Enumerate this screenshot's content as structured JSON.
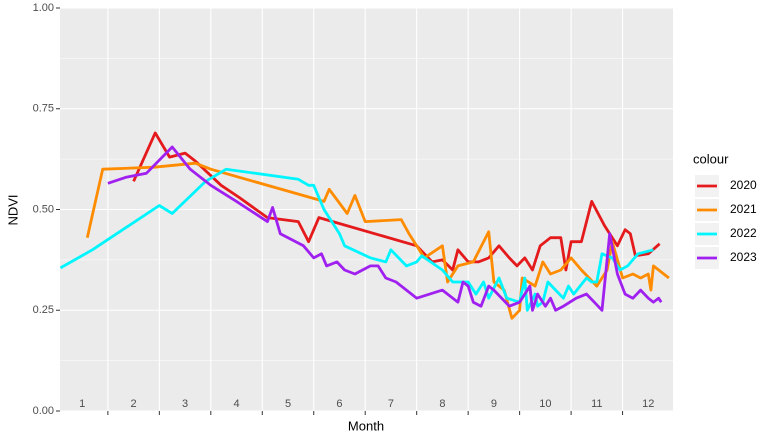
{
  "chart_data": {
    "type": "line",
    "xlabel": "Month",
    "ylabel": "NDVI",
    "legend_title": "colour",
    "legend": "right",
    "xlim": [
      0.57,
      12.48
    ],
    "xticks": [
      1,
      2,
      3,
      4,
      5,
      6,
      7,
      8,
      9,
      10,
      11,
      12
    ],
    "x_minor_ticks": [
      1.5,
      2.5,
      3.5,
      4.5,
      5.5,
      6.5,
      7.5,
      8.5,
      9.5,
      10.5,
      11.5
    ],
    "ylim": [
      0,
      1
    ],
    "yticks": [
      {
        "value": 0,
        "label": "0.00"
      },
      {
        "value": 0.25,
        "label": "0.25"
      },
      {
        "value": 0.5,
        "label": "0.50"
      },
      {
        "value": 0.75,
        "label": "0.75"
      },
      {
        "value": 1,
        "label": "1.00"
      }
    ],
    "grid": true,
    "series": [
      {
        "name": "2020",
        "color": "#e41a1c",
        "x": [
          2.0,
          2.42,
          2.7,
          3.0,
          3.2,
          3.7,
          4.05,
          4.6,
          5.2,
          5.4,
          5.6,
          7.5,
          7.8,
          8.0,
          8.2,
          8.3,
          8.5,
          8.7,
          8.9,
          9.1,
          9.3,
          9.45,
          9.6,
          9.75,
          9.9,
          10.1,
          10.3,
          10.4,
          10.5,
          10.7,
          10.9,
          11.15,
          11.4,
          11.55,
          11.65,
          11.75,
          12.0,
          12.22
        ],
        "values": [
          0.57,
          0.69,
          0.63,
          0.64,
          0.62,
          0.56,
          0.53,
          0.48,
          0.47,
          0.42,
          0.48,
          0.41,
          0.37,
          0.375,
          0.35,
          0.4,
          0.37,
          0.37,
          0.38,
          0.41,
          0.38,
          0.36,
          0.38,
          0.35,
          0.41,
          0.43,
          0.43,
          0.35,
          0.42,
          0.42,
          0.52,
          0.46,
          0.41,
          0.45,
          0.44,
          0.385,
          0.39,
          0.415
        ]
      },
      {
        "name": "2021",
        "color": "#ff8c00",
        "x": [
          1.1,
          1.4,
          2.4,
          3.2,
          3.5,
          5.7,
          5.8,
          6.15,
          6.3,
          6.5,
          7.2,
          7.35,
          7.65,
          8.0,
          8.1,
          8.3,
          8.6,
          8.9,
          9.0,
          9.2,
          9.35,
          9.5,
          9.55,
          9.8,
          9.95,
          10.1,
          10.3,
          10.5,
          10.7,
          10.85,
          11.0,
          11.2,
          11.3,
          11.5,
          11.7,
          11.85,
          12.0,
          12.05,
          12.1,
          12.4
        ],
        "values": [
          0.43,
          0.6,
          0.605,
          0.615,
          0.6,
          0.52,
          0.55,
          0.49,
          0.535,
          0.47,
          0.475,
          0.44,
          0.38,
          0.41,
          0.32,
          0.36,
          0.37,
          0.445,
          0.32,
          0.3,
          0.23,
          0.25,
          0.33,
          0.31,
          0.37,
          0.34,
          0.35,
          0.38,
          0.35,
          0.33,
          0.31,
          0.35,
          0.42,
          0.33,
          0.34,
          0.33,
          0.34,
          0.3,
          0.36,
          0.33
        ]
      },
      {
        "name": "2022",
        "color": "#00f5ff",
        "x": [
          0.58,
          1.2,
          2.5,
          2.75,
          3.4,
          3.8,
          5.2,
          5.4,
          5.5,
          5.7,
          6.0,
          6.1,
          6.6,
          6.9,
          7.0,
          7.3,
          7.5,
          7.6,
          8.0,
          8.2,
          8.5,
          8.65,
          8.8,
          8.9,
          9.1,
          9.25,
          9.5,
          9.6,
          9.65,
          9.8,
          9.85,
          9.95,
          10.05,
          10.2,
          10.35,
          10.45,
          10.55,
          10.8,
          10.9,
          11.0,
          11.1,
          11.3,
          11.45,
          11.6,
          11.8,
          12.1
        ],
        "values": [
          0.355,
          0.4,
          0.51,
          0.49,
          0.57,
          0.6,
          0.575,
          0.56,
          0.56,
          0.5,
          0.44,
          0.41,
          0.38,
          0.37,
          0.4,
          0.36,
          0.37,
          0.385,
          0.35,
          0.32,
          0.32,
          0.29,
          0.32,
          0.28,
          0.33,
          0.28,
          0.27,
          0.33,
          0.25,
          0.29,
          0.26,
          0.27,
          0.32,
          0.3,
          0.28,
          0.31,
          0.29,
          0.33,
          0.32,
          0.32,
          0.39,
          0.38,
          0.35,
          0.36,
          0.39,
          0.4
        ]
      },
      {
        "name": "2023",
        "color": "#a020f0",
        "x": [
          1.5,
          1.85,
          2.25,
          2.75,
          3.1,
          3.5,
          4.0,
          4.6,
          4.7,
          4.85,
          5.3,
          5.5,
          5.65,
          5.75,
          5.95,
          6.1,
          6.3,
          6.6,
          6.75,
          6.9,
          7.1,
          7.5,
          8.0,
          8.3,
          8.4,
          8.5,
          8.6,
          8.75,
          8.9,
          9.0,
          9.3,
          9.5,
          9.7,
          9.75,
          9.85,
          10.0,
          10.1,
          10.2,
          10.35,
          10.6,
          10.8,
          10.95,
          11.1,
          11.25,
          11.4,
          11.55,
          11.7,
          11.85,
          12.0,
          12.1,
          12.2,
          12.25
        ],
        "values": [
          0.565,
          0.58,
          0.59,
          0.655,
          0.6,
          0.56,
          0.52,
          0.47,
          0.505,
          0.44,
          0.41,
          0.38,
          0.39,
          0.36,
          0.37,
          0.35,
          0.34,
          0.36,
          0.36,
          0.33,
          0.32,
          0.28,
          0.3,
          0.27,
          0.32,
          0.31,
          0.27,
          0.26,
          0.31,
          0.3,
          0.26,
          0.27,
          0.31,
          0.25,
          0.29,
          0.26,
          0.28,
          0.25,
          0.26,
          0.28,
          0.29,
          0.27,
          0.25,
          0.44,
          0.34,
          0.29,
          0.28,
          0.3,
          0.28,
          0.27,
          0.28,
          0.27
        ]
      }
    ]
  }
}
